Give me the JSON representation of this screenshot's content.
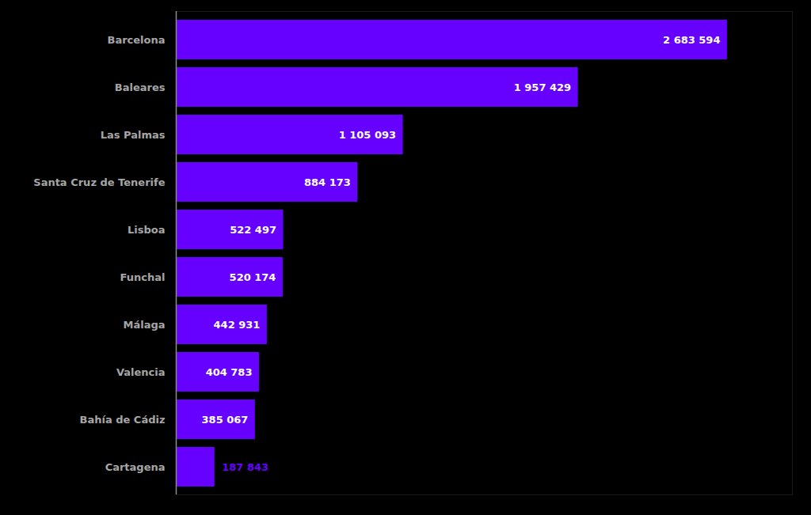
{
  "chart_data": {
    "type": "bar",
    "orientation": "horizontal",
    "categories": [
      "Barcelona",
      "Baleares",
      "Las Palmas",
      "Santa Cruz de Tenerife",
      "Lisboa",
      "Funchal",
      "Málaga",
      "Valencia",
      "Bahía de Cádiz",
      "Cartagena"
    ],
    "values": [
      2683594,
      1957429,
      1105093,
      884173,
      522497,
      520174,
      442931,
      404783,
      385067,
      187843
    ],
    "value_labels": [
      "2 683 594",
      "1 957 429",
      "1 105 093",
      "884 173",
      "522 497",
      "520 174",
      "442 931",
      "404 783",
      "385 067",
      "187 843"
    ],
    "color": "#6600ff",
    "xlim": [
      0,
      3000000
    ],
    "xticks": [],
    "tick_labels": "y",
    "data_labels": true,
    "grid": false
  }
}
